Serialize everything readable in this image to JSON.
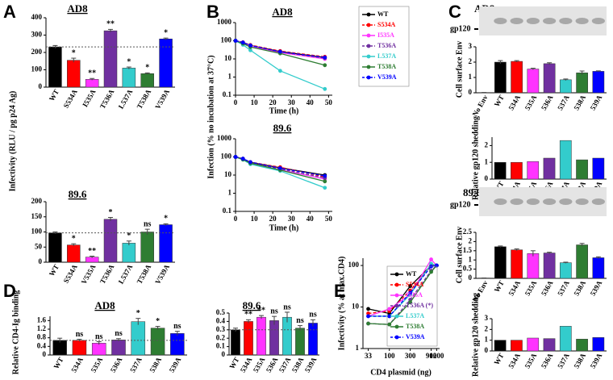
{
  "chart_data": [
    {
      "type": "bar",
      "panel": "A",
      "title": "AD8",
      "ylabel": "Infectivity (RLU / pg p24 Ag)",
      "categories": [
        "WT",
        "S534A",
        "I535A",
        "T536A",
        "L537A",
        "T538A",
        "V539A"
      ],
      "values": [
        232,
        155,
        45,
        325,
        110,
        78,
        278
      ],
      "errors": [
        8,
        12,
        5,
        8,
        6,
        4,
        5
      ],
      "annotations": [
        null,
        "*",
        "**",
        "**",
        "*",
        "*",
        "*"
      ],
      "colors": [
        "#000000",
        "#ff0000",
        "#ff33ff",
        "#7030a0",
        "#33cccc",
        "#2e7d32",
        "#0000ff"
      ],
      "ylim": [
        0,
        400
      ],
      "yticks": [
        0,
        100,
        200,
        300,
        400
      ],
      "hline": 232
    },
    {
      "type": "bar",
      "title": "89.6",
      "categories": [
        "WT",
        "S534A",
        "V535A",
        "T536A",
        "L537A",
        "T538A",
        "V539A"
      ],
      "values": [
        97,
        57,
        17,
        142,
        63,
        100,
        124
      ],
      "errors": [
        3,
        4,
        3,
        6,
        7,
        9,
        3
      ],
      "annotations": [
        null,
        "*",
        "**",
        "*",
        "*",
        "ns",
        "*"
      ],
      "colors": [
        "#000000",
        "#ff0000",
        "#ff33ff",
        "#7030a0",
        "#33cccc",
        "#2e7d32",
        "#0000ff"
      ],
      "ylim": [
        0,
        200
      ],
      "yticks": [
        0,
        50,
        100,
        150,
        200
      ],
      "hline": 97
    },
    {
      "type": "line",
      "panel": "B",
      "title": "AD8",
      "ylabel": "Infection (% no incubation at 37°C)",
      "xlabel": "Time (h)",
      "x": [
        0,
        4,
        8,
        24,
        48
      ],
      "xlim": [
        0,
        52
      ],
      "xticks": [
        0,
        10,
        20,
        30,
        40,
        50
      ],
      "ylim": [
        0.1,
        1000
      ],
      "yticks": [
        0.1,
        1,
        10,
        100,
        1000
      ],
      "ylog": true,
      "legend": "outside right",
      "series": [
        {
          "name": "WT",
          "color": "#000000",
          "values": [
            100,
            80,
            55,
            25,
            12
          ]
        },
        {
          "name": "S534A",
          "color": "#ff0000",
          "dashed": true,
          "values": [
            100,
            82,
            58,
            27,
            13
          ]
        },
        {
          "name": "I535A",
          "color": "#ff33ff",
          "values": [
            100,
            78,
            52,
            22,
            10
          ]
        },
        {
          "name": "T536A",
          "color": "#7030a0",
          "dashed": true,
          "values": [
            100,
            80,
            55,
            24,
            11
          ]
        },
        {
          "name": "L537A",
          "color": "#33cccc",
          "values": [
            100,
            60,
            30,
            2.2,
            0.22
          ]
        },
        {
          "name": "T538A",
          "color": "#2e7d32",
          "values": [
            100,
            70,
            45,
            20,
            4.5
          ]
        },
        {
          "name": "V539A",
          "color": "#0000ff",
          "dashed": true,
          "values": [
            100,
            80,
            55,
            25,
            12
          ]
        }
      ]
    },
    {
      "type": "line",
      "title": "89.6",
      "xlabel": "Time (h)",
      "x": [
        0,
        4,
        8,
        24,
        48
      ],
      "xlim": [
        0,
        52
      ],
      "xticks": [
        0,
        10,
        20,
        30,
        40,
        50
      ],
      "ylim": [
        0.1,
        1000
      ],
      "yticks": [
        0.1,
        1,
        10,
        100,
        1000
      ],
      "ylog": true,
      "series": [
        {
          "color": "#000000",
          "values": [
            100,
            80,
            50,
            25,
            10
          ]
        },
        {
          "color": "#ff0000",
          "dashed": true,
          "values": [
            100,
            78,
            52,
            27,
            8
          ]
        },
        {
          "color": "#ff33ff",
          "values": [
            100,
            75,
            45,
            20,
            6
          ]
        },
        {
          "color": "#7030a0",
          "dashed": true,
          "values": [
            100,
            78,
            48,
            22,
            7
          ]
        },
        {
          "color": "#33cccc",
          "values": [
            100,
            70,
            40,
            17,
            2
          ]
        },
        {
          "color": "#2e7d32",
          "values": [
            100,
            72,
            45,
            19,
            4.5
          ]
        },
        {
          "color": "#0000ff",
          "dashed": true,
          "values": [
            100,
            80,
            52,
            24,
            9
          ]
        }
      ]
    },
    {
      "type": "bar",
      "panel": "C",
      "title": "AD8",
      "blot_label": "gp120",
      "ylabel": "Cell surface Env",
      "categories": [
        "No Env",
        "WT",
        "534A",
        "535A",
        "536A",
        "537A",
        "538A",
        "539A"
      ],
      "values": [
        0.02,
        2.0,
        2.05,
        1.55,
        1.9,
        0.85,
        1.3,
        1.4
      ],
      "errors": [
        0,
        0.1,
        0.05,
        0.05,
        0.06,
        0.05,
        0.12,
        0.03
      ],
      "colors": [
        "#000000",
        "#000000",
        "#ff0000",
        "#ff33ff",
        "#7030a0",
        "#33cccc",
        "#2e7d32",
        "#0000ff"
      ],
      "ylim": [
        0,
        3
      ],
      "yticks": [
        0,
        1,
        2,
        3
      ]
    },
    {
      "type": "bar",
      "ylabel": "Relative gp120 shedding",
      "categories": [
        "WT",
        "534A",
        "535A",
        "536A",
        "537A",
        "538A",
        "539A"
      ],
      "values": [
        1.0,
        1.0,
        1.05,
        1.25,
        2.3,
        1.15,
        1.25
      ],
      "colors": [
        "#000000",
        "#ff0000",
        "#ff33ff",
        "#7030a0",
        "#33cccc",
        "#2e7d32",
        "#0000ff"
      ],
      "ylim": [
        0,
        2.5
      ],
      "yticks": [
        0,
        1,
        2
      ]
    },
    {
      "type": "bar",
      "title": "89.6",
      "blot_label": "gp120",
      "ylabel": "Cell surface Env",
      "categories": [
        "No Env",
        "WT",
        "534A",
        "535A",
        "536A",
        "537A",
        "538A",
        "539A"
      ],
      "values": [
        0.02,
        1.72,
        1.55,
        1.35,
        1.38,
        0.85,
        1.82,
        1.12
      ],
      "errors": [
        0,
        0.04,
        0.05,
        0.15,
        0.04,
        0.03,
        0.08,
        0.05
      ],
      "colors": [
        "#000000",
        "#000000",
        "#ff0000",
        "#ff33ff",
        "#7030a0",
        "#33cccc",
        "#2e7d32",
        "#0000ff"
      ],
      "ylim": [
        0,
        2.5
      ],
      "yticks": [
        0,
        0.5,
        1,
        1.5,
        2,
        2.5
      ]
    },
    {
      "type": "bar",
      "ylabel": "Relative gp120 shedding",
      "categories": [
        "WT",
        "534A",
        "535A",
        "536A",
        "537A",
        "538A",
        "539A"
      ],
      "values": [
        1.0,
        1.0,
        1.2,
        1.15,
        2.3,
        1.1,
        1.25
      ],
      "colors": [
        "#000000",
        "#ff0000",
        "#ff33ff",
        "#7030a0",
        "#33cccc",
        "#2e7d32",
        "#0000ff"
      ],
      "ylim": [
        0,
        3
      ],
      "yticks": [
        0,
        1,
        2,
        3
      ]
    },
    {
      "type": "bar",
      "panel": "D",
      "title": "AD8",
      "ylabel": "Relative CD4-Ig binding",
      "categories": [
        "WT",
        "534A",
        "535A",
        "536A",
        "537A",
        "538A",
        "539A"
      ],
      "values": [
        0.68,
        0.68,
        0.55,
        0.7,
        1.55,
        1.25,
        1.0
      ],
      "errors": [
        0.1,
        0.05,
        0.07,
        0.06,
        0.15,
        0.08,
        0.1
      ],
      "annotations": [
        null,
        "ns",
        "ns",
        "ns",
        "*",
        "*",
        "ns"
      ],
      "colors": [
        "#000000",
        "#ff0000",
        "#ff33ff",
        "#7030a0",
        "#33cccc",
        "#2e7d32",
        "#0000ff"
      ],
      "ylim": [
        0,
        1.8
      ],
      "yticks": [
        0,
        0.4,
        0.8,
        1.2,
        1.6
      ],
      "hline": 0.68
    },
    {
      "type": "bar",
      "title": "89.6",
      "categories": [
        "WT",
        "534A",
        "535A",
        "536A",
        "537A",
        "538A",
        "539A"
      ],
      "values": [
        0.3,
        0.4,
        0.45,
        0.41,
        0.45,
        0.32,
        0.38
      ],
      "errors": [
        0.02,
        0.02,
        0.02,
        0.05,
        0.06,
        0.03,
        0.04
      ],
      "annotations": [
        null,
        "**",
        "**",
        "ns",
        "ns",
        "ns",
        "ns"
      ],
      "colors": [
        "#000000",
        "#ff0000",
        "#ff33ff",
        "#7030a0",
        "#33cccc",
        "#2e7d32",
        "#0000ff"
      ],
      "ylim": [
        0,
        0.5
      ],
      "yticks": [
        0,
        0.1,
        0.2,
        0.3,
        0.4,
        0.5
      ],
      "hline": 0.3
    },
    {
      "type": "line",
      "panel": "E",
      "ylabel": "Infectivity (% at max.CD4)",
      "xlabel": "CD4 plasmid (ng)",
      "x": [
        33,
        100,
        300,
        900,
        1200
      ],
      "xlim": [
        25,
        1400
      ],
      "xticks": [
        33,
        100,
        300,
        900,
        1200
      ],
      "xlog": true,
      "ylim": [
        1,
        150
      ],
      "yticks": [
        1,
        10,
        100
      ],
      "ylog": true,
      "legend": "inside",
      "series": [
        {
          "name": "WT",
          "color": "#000000",
          "values": [
            9,
            7,
            32,
            100,
            100
          ]
        },
        {
          "name": "S534A",
          "color": "#ff0000",
          "dashed": true,
          "values": [
            7,
            8,
            25,
            100,
            100
          ]
        },
        {
          "name": "I535A",
          "color": "#ff33ff",
          "values": [
            6,
            9,
            20,
            140,
            100
          ]
        },
        {
          "name": "T536A (*)",
          "color": "#7030a0",
          "dashed": true,
          "values": [
            4,
            3.8,
            15,
            75,
            100
          ]
        },
        {
          "name": "L537A",
          "color": "#33cccc",
          "values": [
            6,
            6,
            20,
            110,
            100
          ]
        },
        {
          "name": "T538A",
          "color": "#2e7d32",
          "values": [
            4,
            3.8,
            13,
            70,
            100
          ]
        },
        {
          "name": "V539A",
          "color": "#0000ff",
          "dashed": true,
          "values": [
            6,
            6,
            22,
            95,
            100
          ]
        }
      ]
    }
  ]
}
